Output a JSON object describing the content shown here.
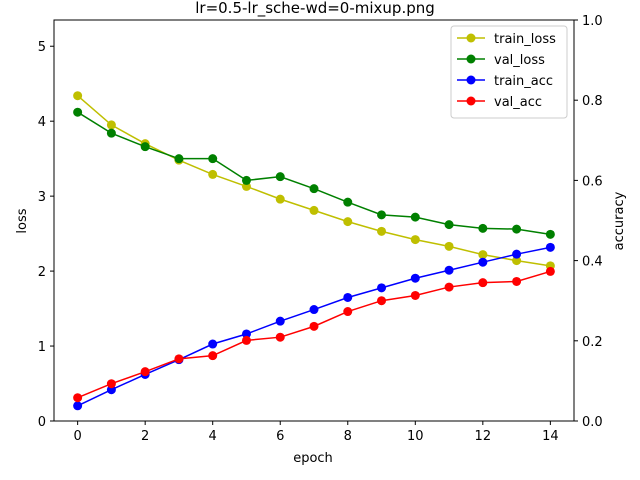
{
  "chart_data": {
    "type": "line",
    "title": "lr=0.5-lr_sche-wd=0-mixup.png",
    "xlabel": "epoch",
    "ylabel": "loss",
    "ylabel_right": "accuracy",
    "x": [
      0,
      1,
      2,
      3,
      4,
      5,
      6,
      7,
      8,
      9,
      10,
      11,
      12,
      13,
      14
    ],
    "xlim": [
      -0.7,
      14.7
    ],
    "ylim": [
      0,
      5.35
    ],
    "ylim_right": [
      0,
      1.0
    ],
    "x_ticks": [
      "0",
      "2",
      "4",
      "6",
      "8",
      "10",
      "12",
      "14"
    ],
    "y_ticks": [
      "0",
      "1",
      "2",
      "3",
      "4",
      "5"
    ],
    "y_ticks_right": [
      "0.0",
      "0.2",
      "0.4",
      "0.6",
      "0.8",
      "1.0"
    ],
    "legend_position": "top-right",
    "series": [
      {
        "name": "train_loss",
        "axis": "left",
        "color": "#bfbf00",
        "values": [
          4.34,
          3.95,
          3.7,
          3.48,
          3.29,
          3.13,
          2.96,
          2.81,
          2.66,
          2.53,
          2.42,
          2.33,
          2.22,
          2.14,
          2.07
        ]
      },
      {
        "name": "val_loss",
        "axis": "left",
        "color": "#008000",
        "values": [
          4.12,
          3.84,
          3.66,
          3.5,
          3.5,
          3.21,
          3.26,
          3.1,
          2.92,
          2.75,
          2.72,
          2.62,
          2.57,
          2.56,
          2.49
        ]
      },
      {
        "name": "train_acc",
        "axis": "right",
        "color": "#0000ff",
        "values": [
          0.038,
          0.078,
          0.116,
          0.153,
          0.192,
          0.217,
          0.249,
          0.278,
          0.308,
          0.332,
          0.356,
          0.376,
          0.396,
          0.416,
          0.433
        ]
      },
      {
        "name": "val_acc",
        "axis": "right",
        "color": "#ff0000",
        "values": [
          0.058,
          0.093,
          0.123,
          0.155,
          0.163,
          0.201,
          0.209,
          0.236,
          0.273,
          0.3,
          0.313,
          0.334,
          0.345,
          0.348,
          0.373
        ]
      }
    ]
  }
}
